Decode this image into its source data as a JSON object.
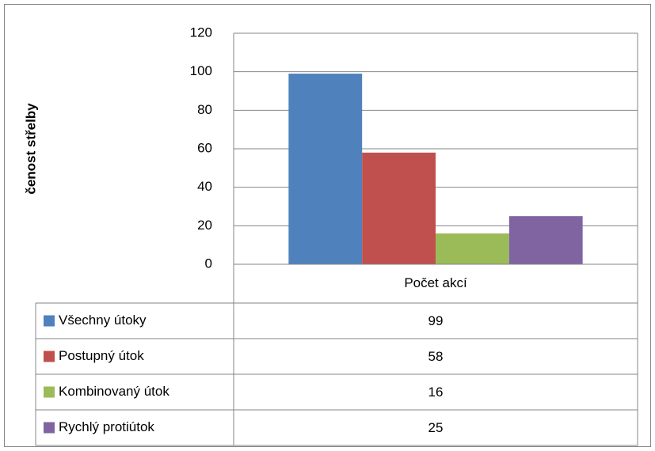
{
  "chart_data": {
    "type": "bar",
    "y_axis_label": "čenost střelby",
    "categories": [
      "Počet akcí"
    ],
    "series": [
      {
        "name": "Všechny útoky",
        "color": "#4f81bd",
        "values": [
          99
        ]
      },
      {
        "name": "Postupný útok",
        "color": "#c0504d",
        "values": [
          58
        ]
      },
      {
        "name": "Kombinovaný útok",
        "color": "#9bbb59",
        "values": [
          16
        ]
      },
      {
        "name": "Rychlý protiútok",
        "color": "#8064a2",
        "values": [
          25
        ]
      }
    ],
    "ylim": [
      0,
      120
    ],
    "yticks": [
      0,
      20,
      40,
      60,
      80,
      100,
      120
    ],
    "grid": true,
    "data_table": true
  }
}
